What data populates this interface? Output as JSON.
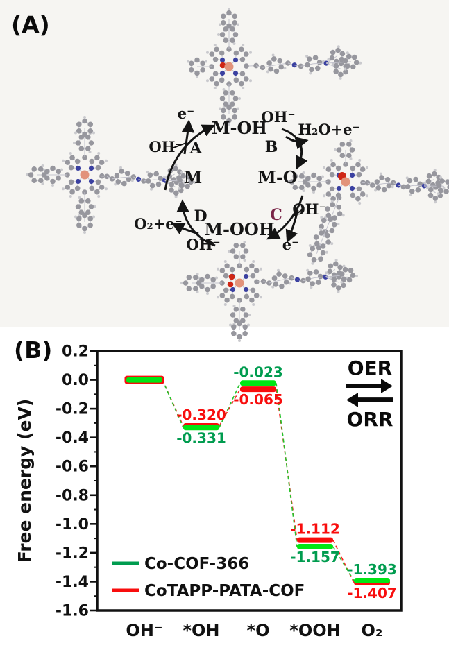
{
  "figure": {
    "panel_a_label": "(A)",
    "panel_b_label": "(B)"
  },
  "diagram": {
    "description": "OER/ORR catalytic cycle on metal porphyrin COF",
    "species": {
      "m": "M",
      "m_oh": "M-OH",
      "m_o": "M-O",
      "m_ooh": "M-OOH"
    },
    "steps": {
      "a": "A",
      "b": "B",
      "c": "C",
      "d": "D"
    },
    "step_c_color": "#7a2447",
    "reagents": {
      "e_top": "e⁻",
      "oh_a": "OH⁻",
      "oh_b": "OH⁻",
      "h2o_e": "H₂O+e⁻",
      "oh_c": "OH⁻",
      "e_c": "e⁻",
      "oh_d": "OH⁻",
      "o2_e": "O₂+e⁻"
    }
  },
  "chart_data": {
    "type": "line",
    "variant": "stepped-energy-level-diagram",
    "title": "",
    "xlabel": "",
    "ylabel": "Free energy (eV)",
    "ylim": [
      -1.6,
      0.2
    ],
    "ytick_step": 0.2,
    "yticks": [
      "0.2",
      "0.0",
      "-0.2",
      "-0.4",
      "-0.6",
      "-0.8",
      "-1.0",
      "-1.2",
      "-1.4",
      "-1.6"
    ],
    "categories": [
      "OH⁻",
      "*OH",
      "*O",
      "*OOH",
      "O₂"
    ],
    "series": [
      {
        "name": "Co-COF-366",
        "text_color": "#009c4f",
        "level_color": "#00e614",
        "dash_color": "#25c32b",
        "values": [
          0.0,
          -0.331,
          -0.023,
          -1.157,
          -1.393
        ],
        "labels": [
          "",
          "-0.331",
          "-0.023",
          "-1.157",
          "-1.393"
        ]
      },
      {
        "name": "CoTAPP-PATA-COF",
        "text_color": "#f80d0d",
        "level_color": "#f80d0d",
        "dash_color": "#fb2020",
        "values": [
          0.0,
          -0.32,
          -0.065,
          -1.112,
          -1.407
        ],
        "labels": [
          "",
          "-0.320",
          "-0.065",
          "-1.112",
          "-1.407"
        ]
      }
    ],
    "legend_position": "lower-left",
    "grid": false,
    "annotations": {
      "forward": "OER",
      "reverse": "ORR"
    }
  }
}
